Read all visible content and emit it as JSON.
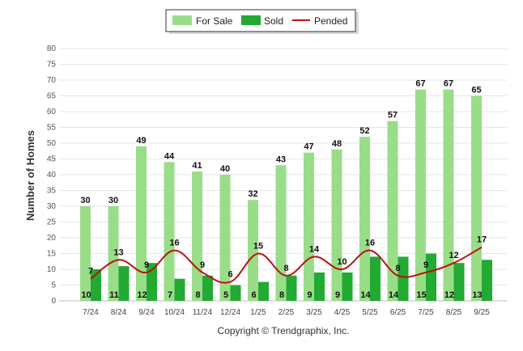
{
  "chart_data": {
    "type": "bar",
    "ylabel": "Number of Homes",
    "xlabel": "",
    "ylim": [
      0,
      80
    ],
    "ytick_step": 5,
    "categories": [
      "7/24",
      "8/24",
      "9/24",
      "10/24",
      "11/24",
      "12/24",
      "1/25",
      "2/25",
      "3/25",
      "4/25",
      "5/25",
      "6/25",
      "7/25",
      "8/25",
      "9/25"
    ],
    "series": [
      {
        "name": "For Sale",
        "type": "bar",
        "color": "#99dd88",
        "values": [
          30,
          30,
          49,
          44,
          41,
          40,
          32,
          43,
          47,
          48,
          52,
          57,
          67,
          67,
          65
        ]
      },
      {
        "name": "Sold",
        "type": "bar",
        "color": "#22aa33",
        "values": [
          10,
          11,
          12,
          7,
          8,
          5,
          6,
          8,
          9,
          9,
          14,
          14,
          15,
          12,
          13
        ]
      },
      {
        "name": "Pended",
        "type": "line",
        "color": "#bb1111",
        "values": [
          7,
          13,
          9,
          16,
          9,
          6,
          15,
          8,
          14,
          10,
          16,
          8,
          9,
          12,
          17
        ]
      }
    ],
    "legend": "top-center",
    "grid": true
  },
  "footer": {
    "copyright": "Copyright © Trendgraphix, Inc."
  }
}
